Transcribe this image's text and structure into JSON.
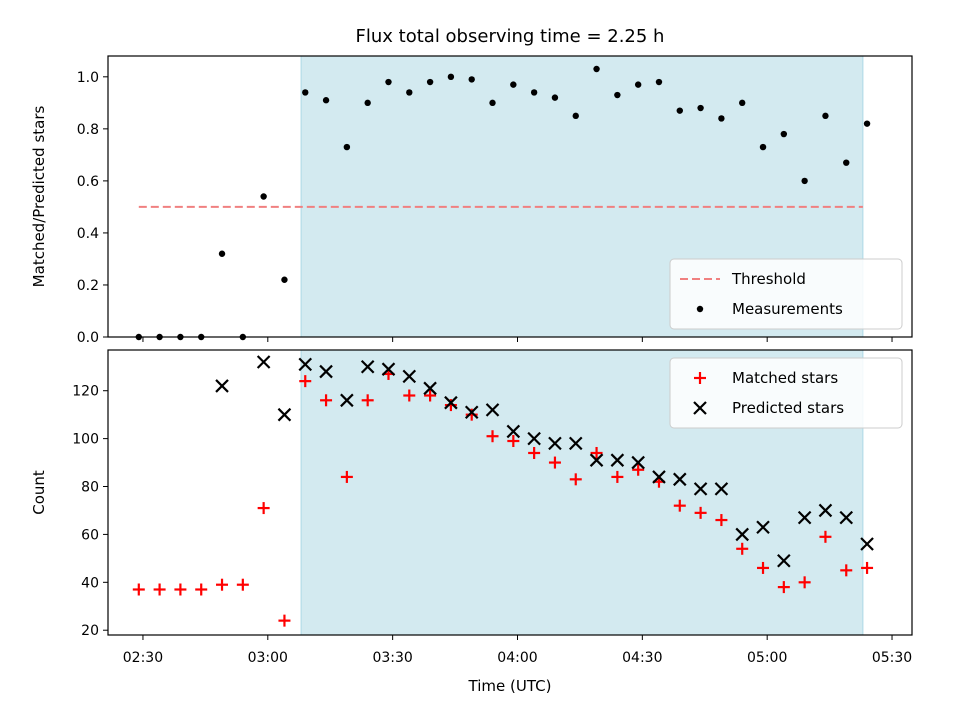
{
  "title": "Flux total observing time = 2.25 h",
  "x_axis": {
    "label": "Time (UTC)",
    "tick_labels": [
      "02:30",
      "03:00",
      "03:30",
      "04:00",
      "04:30",
      "05:00",
      "05:30"
    ],
    "tick_minutes": [
      150,
      180,
      210,
      240,
      270,
      300,
      330
    ],
    "range_minutes": [
      141.6,
      334.8
    ]
  },
  "highlight_span": {
    "start_minutes": 188,
    "end_minutes": 323,
    "color": "#d3eaf0",
    "edge_color": "#add8e6"
  },
  "chart_data": [
    {
      "type": "scatter",
      "panel": "top",
      "ylabel": "Matched/Predicted stars",
      "ylim": [
        0,
        1.08
      ],
      "yticks": [
        0.0,
        0.2,
        0.4,
        0.6,
        0.8,
        1.0
      ],
      "ytick_labels": [
        "0.0",
        "0.2",
        "0.4",
        "0.6",
        "0.8",
        "1.0"
      ],
      "threshold": {
        "name": "Threshold",
        "value": 0.5,
        "x_range": [
          149,
          323
        ],
        "color": "#f08080"
      },
      "legend": {
        "location": "lower-right",
        "entries": [
          "Threshold",
          "Measurements"
        ]
      },
      "series": [
        {
          "name": "Measurements",
          "marker": "dot",
          "color": "#000000",
          "x": [
            149,
            154,
            159,
            164,
            169,
            174,
            179,
            184,
            189,
            194,
            199,
            204,
            209,
            214,
            219,
            224,
            229,
            234,
            239,
            244,
            249,
            254,
            259,
            264,
            269,
            274,
            279,
            284,
            289,
            294,
            299,
            304,
            309,
            314,
            319,
            324
          ],
          "y": [
            0,
            0,
            0,
            0,
            0.32,
            0,
            0.54,
            0.22,
            0.94,
            0.91,
            0.73,
            0.9,
            0.98,
            0.94,
            0.98,
            1.0,
            0.99,
            0.9,
            0.97,
            0.94,
            0.92,
            0.85,
            1.03,
            0.93,
            0.97,
            0.98,
            0.87,
            0.88,
            0.84,
            0.9,
            0.73,
            0.78,
            0.6,
            0.85,
            0.67,
            0.82
          ]
        }
      ]
    },
    {
      "type": "scatter",
      "panel": "bottom",
      "ylabel": "Count",
      "ylim": [
        18,
        137
      ],
      "yticks": [
        20,
        40,
        60,
        80,
        100,
        120
      ],
      "ytick_labels": [
        "20",
        "40",
        "60",
        "80",
        "100",
        "120"
      ],
      "legend": {
        "location": "upper-right",
        "entries": [
          "Matched stars",
          "Predicted stars"
        ]
      },
      "series": [
        {
          "name": "Matched stars",
          "marker": "plus",
          "color": "#ff0000",
          "x": [
            149,
            154,
            159,
            164,
            169,
            174,
            179,
            184,
            189,
            194,
            199,
            204,
            209,
            214,
            219,
            224,
            229,
            234,
            239,
            244,
            249,
            254,
            259,
            264,
            269,
            274,
            279,
            284,
            289,
            294,
            299,
            304,
            309,
            314,
            319,
            324
          ],
          "y": [
            37,
            37,
            37,
            37,
            39,
            39,
            71,
            24,
            124,
            116,
            84,
            116,
            127,
            118,
            118,
            114,
            110,
            101,
            99,
            94,
            90,
            83,
            94,
            84,
            87,
            82,
            72,
            69,
            66,
            54,
            46,
            38,
            40,
            59,
            45,
            46
          ]
        },
        {
          "name": "Predicted stars",
          "marker": "x",
          "color": "#000000",
          "x": [
            169,
            179,
            184,
            189,
            194,
            199,
            204,
            209,
            214,
            219,
            224,
            229,
            234,
            239,
            244,
            249,
            254,
            259,
            264,
            269,
            274,
            279,
            284,
            289,
            294,
            299,
            304,
            309,
            314,
            319,
            324
          ],
          "y": [
            122,
            132,
            110,
            131,
            128,
            116,
            130,
            129,
            126,
            121,
            115,
            111,
            112,
            103,
            100,
            98,
            98,
            91,
            91,
            90,
            84,
            83,
            79,
            79,
            60,
            63,
            49,
            67,
            70,
            67,
            56
          ]
        }
      ]
    }
  ]
}
